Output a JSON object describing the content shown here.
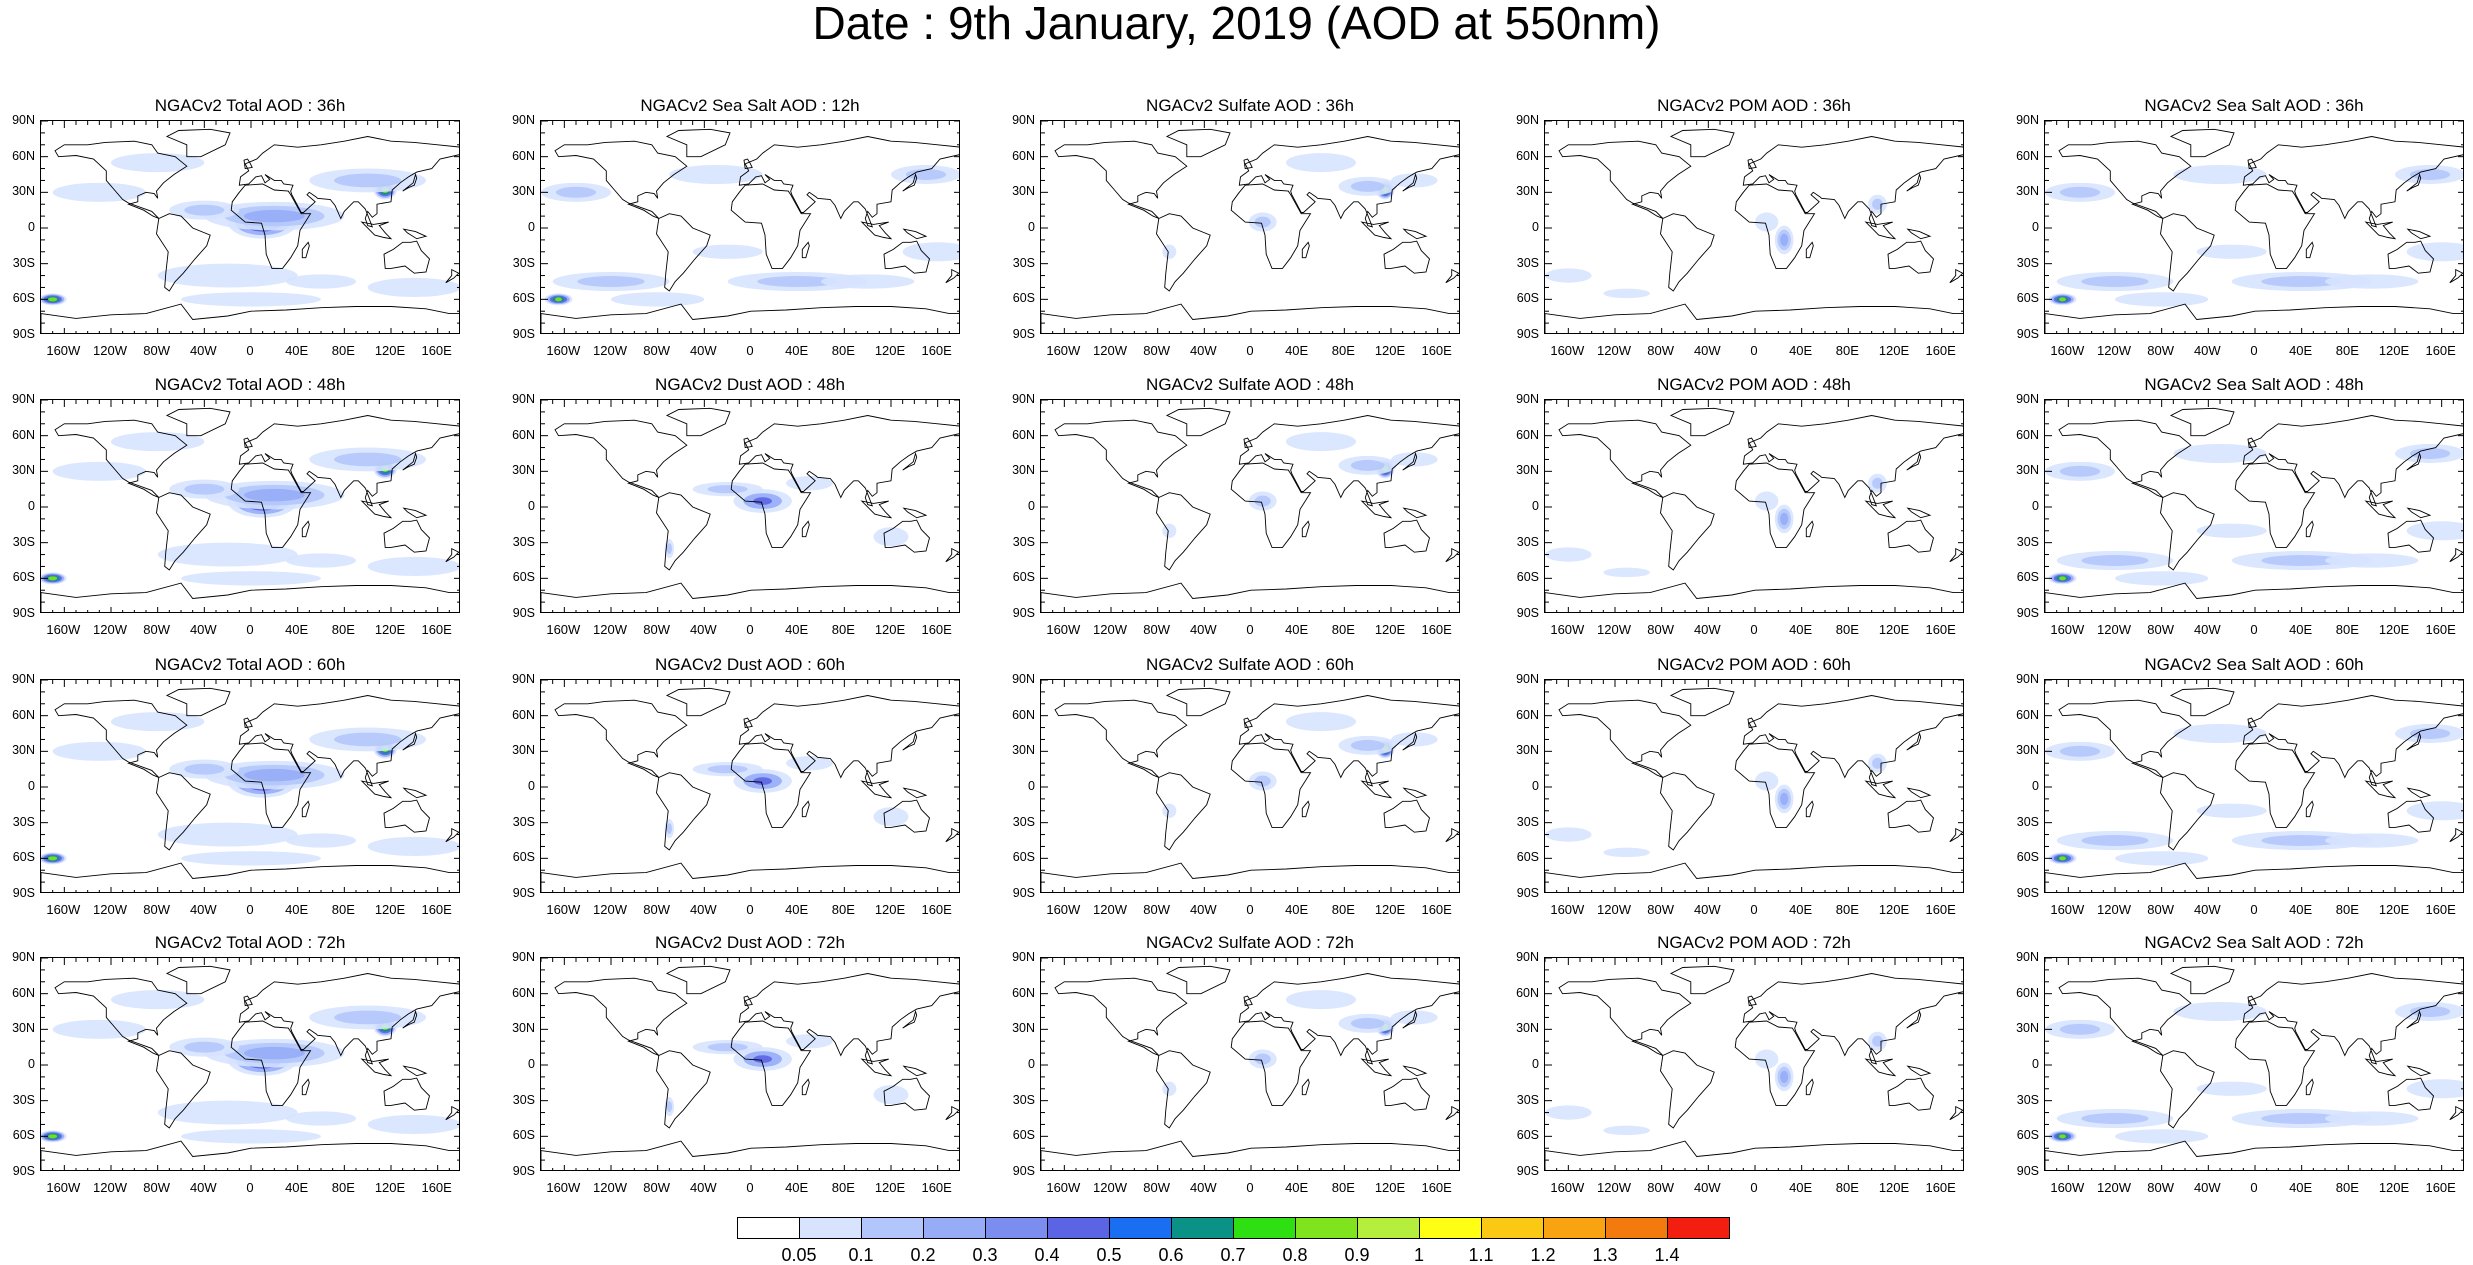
{
  "title": "Date : 9th January, 2019 (AOD at 550nm)",
  "lat_ticks": [
    "90N",
    "60N",
    "30N",
    "0",
    "30S",
    "60S",
    "90S"
  ],
  "lon_ticks": [
    "160W",
    "120W",
    "80W",
    "40W",
    "0",
    "40E",
    "80E",
    "120E",
    "160E"
  ],
  "panel_titles": [
    [
      "NGACv2 Total AOD : 36h",
      "NGACv2 Sea Salt  AOD : 12h",
      "NGACv2 Sulfate AOD : 36h",
      "NGACv2 POM AOD : 36h",
      "NGACv2 Sea Salt AOD : 36h"
    ],
    [
      "NGACv2 Total AOD : 48h",
      "NGACv2 Dust AOD : 48h",
      "NGACv2 Sulfate AOD : 48h",
      "NGACv2 POM AOD : 48h",
      "NGACv2 Sea Salt AOD : 48h"
    ],
    [
      "NGACv2 Total AOD : 60h",
      "NGACv2 Dust AOD : 60h",
      "NGACv2 Sulfate AOD : 60h",
      "NGACv2 POM AOD : 60h",
      "NGACv2 Sea Salt AOD : 60h"
    ],
    [
      "NGACv2 Total AOD : 72h",
      "NGACv2 Dust AOD : 72h",
      "NGACv2 Sulfate AOD : 72h",
      "NGACv2 POM AOD : 72h",
      "NGACv2 Sea Salt  AOD : 72h"
    ]
  ],
  "colorbar": {
    "labels": [
      "0.05",
      "0.1",
      "0.2",
      "0.3",
      "0.4",
      "0.5",
      "0.6",
      "0.7",
      "0.8",
      "0.9",
      "1",
      "1.1",
      "1.2",
      "1.3",
      "1.4"
    ],
    "colors": [
      "#ffffff",
      "#d7e3ff",
      "#b3c6fb",
      "#96acf7",
      "#7c8df0",
      "#5b64e4",
      "#1a6ef2",
      "#0a9287",
      "#2ee011",
      "#7fe31d",
      "#b5ee3c",
      "#ffff14",
      "#fbc814",
      "#f8a30f",
      "#f37a0c",
      "#f21e10"
    ]
  },
  "land_color": "#ffffff",
  "coast_color": "#000000"
}
